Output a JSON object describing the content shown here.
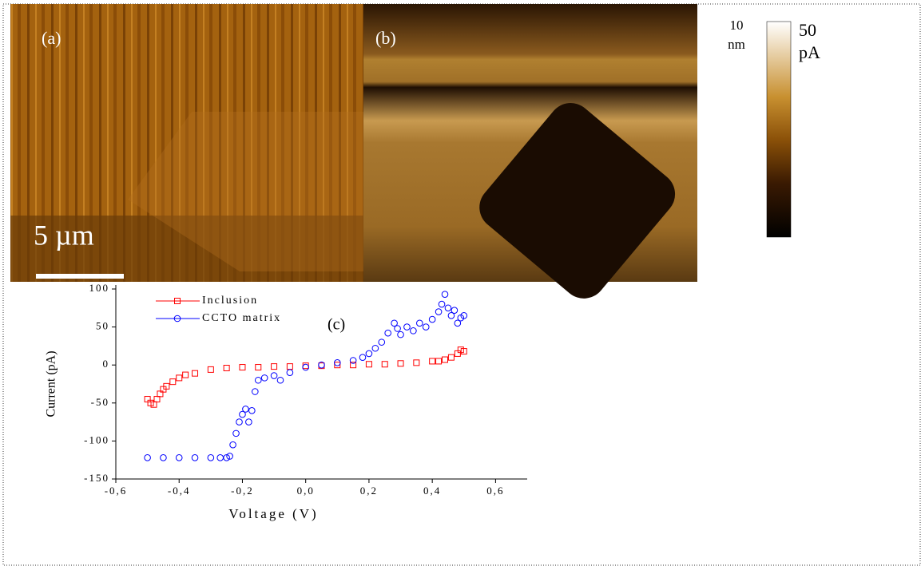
{
  "images": {
    "a_label": "(a)",
    "b_label": "(b)",
    "scale_bar": "5 µm",
    "height_scale_value": "10",
    "height_scale_unit": "nm"
  },
  "colorbar": {
    "max_label": "50",
    "unit": "pA"
  },
  "chart_data": {
    "type": "scatter",
    "annotation": "(c)",
    "x_label": "Voltage (V)",
    "y_label": "Current (pA)",
    "xlim": [
      -0.6,
      0.7
    ],
    "ylim": [
      -150,
      100
    ],
    "xticks": [
      {
        "value": -0.6,
        "label": "-0,6"
      },
      {
        "value": -0.4,
        "label": "-0,4"
      },
      {
        "value": -0.2,
        "label": "-0,2"
      },
      {
        "value": 0,
        "label": "0,0"
      },
      {
        "value": 0.2,
        "label": "0,2"
      },
      {
        "value": 0.4,
        "label": "0,4"
      },
      {
        "value": 0.6,
        "label": "0,6"
      }
    ],
    "yticks": [
      -150,
      -100,
      -50,
      0,
      50,
      100
    ],
    "legend": "top-left",
    "series": [
      {
        "name": "Inclusion",
        "color": "#ff0000",
        "marker": "square",
        "x": [
          -0.5,
          -0.49,
          -0.48,
          -0.47,
          -0.46,
          -0.45,
          -0.44,
          -0.42,
          -0.4,
          -0.38,
          -0.35,
          -0.3,
          -0.25,
          -0.2,
          -0.15,
          -0.1,
          -0.05,
          0,
          0.05,
          0.1,
          0.15,
          0.2,
          0.25,
          0.3,
          0.35,
          0.4,
          0.42,
          0.44,
          0.46,
          0.48,
          0.49,
          0.5
        ],
        "values": [
          -45,
          -50,
          -52,
          -45,
          -38,
          -32,
          -28,
          -22,
          -17,
          -13,
          -11,
          -6,
          -4,
          -3,
          -3,
          -2,
          -2,
          -1,
          -1,
          0,
          0,
          1,
          1,
          2,
          3,
          5,
          5,
          7,
          10,
          15,
          20,
          18
        ]
      },
      {
        "name": "CCTO matrix",
        "color": "#0000ff",
        "marker": "circle",
        "x": [
          -0.5,
          -0.45,
          -0.4,
          -0.35,
          -0.3,
          -0.27,
          -0.25,
          -0.24,
          -0.23,
          -0.22,
          -0.21,
          -0.2,
          -0.19,
          -0.18,
          -0.17,
          -0.16,
          -0.15,
          -0.13,
          -0.1,
          -0.08,
          -0.05,
          0,
          0.05,
          0.1,
          0.15,
          0.18,
          0.2,
          0.22,
          0.24,
          0.26,
          0.28,
          0.29,
          0.3,
          0.32,
          0.34,
          0.36,
          0.38,
          0.4,
          0.42,
          0.43,
          0.44,
          0.45,
          0.46,
          0.47,
          0.48,
          0.49,
          0.5
        ],
        "values": [
          -122,
          -122,
          -122,
          -122,
          -122,
          -122,
          -122,
          -120,
          -105,
          -90,
          -75,
          -65,
          -58,
          -75,
          -60,
          -35,
          -20,
          -17,
          -14,
          -20,
          -10,
          -3,
          0,
          3,
          6,
          10,
          15,
          22,
          30,
          42,
          55,
          48,
          40,
          50,
          45,
          55,
          50,
          60,
          70,
          80,
          93,
          75,
          65,
          72,
          55,
          62,
          65
        ]
      }
    ]
  }
}
